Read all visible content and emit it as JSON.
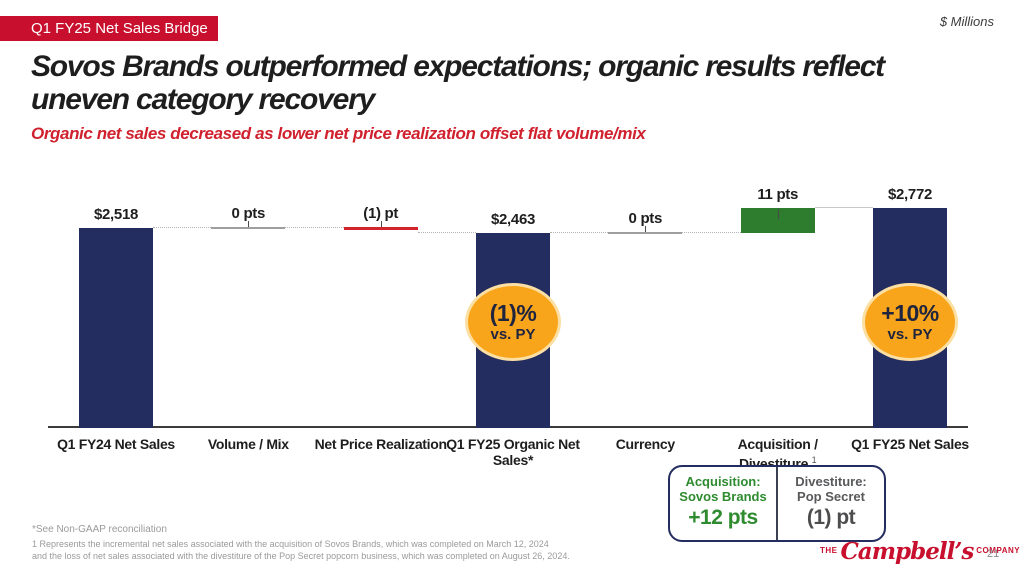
{
  "slide": {
    "kicker": "Q1 FY25 Net Sales Bridge",
    "units_note": "$ Millions",
    "title_line1": "Sovos Brands outperformed expectations; organic results reflect",
    "title_line2": "uneven category recovery",
    "subtitle": "Organic net sales decreased as lower net price realization offset flat volume/mix",
    "page_number": "21"
  },
  "chart_data": {
    "type": "bar",
    "subtype": "waterfall",
    "units": "$ Millions / pts",
    "ylim": [
      0,
      2772
    ],
    "grid": false,
    "categories": [
      "Q1 FY24 Net Sales",
      "Volume / Mix",
      "Net Price Realization",
      "Q1 FY25 Organic Net Sales*",
      "Currency",
      "Acquisition / Divestiture",
      "Q1 FY25 Net Sales"
    ],
    "labels": [
      "$2,518",
      "0 pts",
      "(1) pt",
      "$2,463",
      "0 pts",
      "11 pts",
      "$2,772"
    ],
    "values": [
      2518,
      0,
      -1,
      2463,
      0,
      11,
      2772
    ],
    "columns": [
      {
        "category": "Q1 FY24 Net Sales",
        "label": "$2,518",
        "kind": "total",
        "value": 2518
      },
      {
        "category": "Volume / Mix",
        "label": "0 pts",
        "kind": "flat",
        "level": 2518
      },
      {
        "category": "Net Price Realization",
        "label": "(1) pt",
        "kind": "decrease",
        "level": 2518
      },
      {
        "category": "Q1 FY25 Organic Net Sales*",
        "label": "$2,463",
        "kind": "total",
        "value": 2463
      },
      {
        "category": "Currency",
        "label": "0 pts",
        "kind": "flat",
        "level": 2463
      },
      {
        "category": "Acquisition / Divestiture",
        "sup": "1",
        "label": "11 pts",
        "kind": "increase",
        "from": 2463,
        "to": 2772
      },
      {
        "category": "Q1 FY25 Net Sales",
        "label": "$2,772",
        "kind": "total",
        "value": 2772
      }
    ],
    "badges": [
      {
        "col": 3,
        "line1": "(1)%",
        "line2": "vs. PY"
      },
      {
        "col": 6,
        "line1": "+10%",
        "line2": "vs. PY"
      }
    ],
    "colors": {
      "total_bar": "#242D5F",
      "increase_bar": "#2E7D2F",
      "decrease_line": "#D2232A",
      "flat_line": "#9E9E9E",
      "badge_fill": "#F9A51B",
      "badge_ring": "#FBDFA3",
      "accent_red": "#C8102E"
    }
  },
  "callout": {
    "left": {
      "title_line1": "Acquisition:",
      "title_line2": "Sovos Brands",
      "value": "+12 pts"
    },
    "right": {
      "title_line1": "Divestiture:",
      "title_line2": "Pop Secret",
      "value": "(1) pt"
    }
  },
  "footnotes": {
    "line1": "*See Non-GAAP reconciliation",
    "line2": "1 Represents the incremental net sales associated with the acquisition of Sovos Brands, which was completed on March 12, 2024",
    "line3": "and the loss of net sales associated with the divestiture of the Pop Secret popcorn business, which was completed on August 26, 2024."
  },
  "logo": {
    "the": "THE",
    "name": "Campbell’s",
    "company": "COMPANY"
  }
}
